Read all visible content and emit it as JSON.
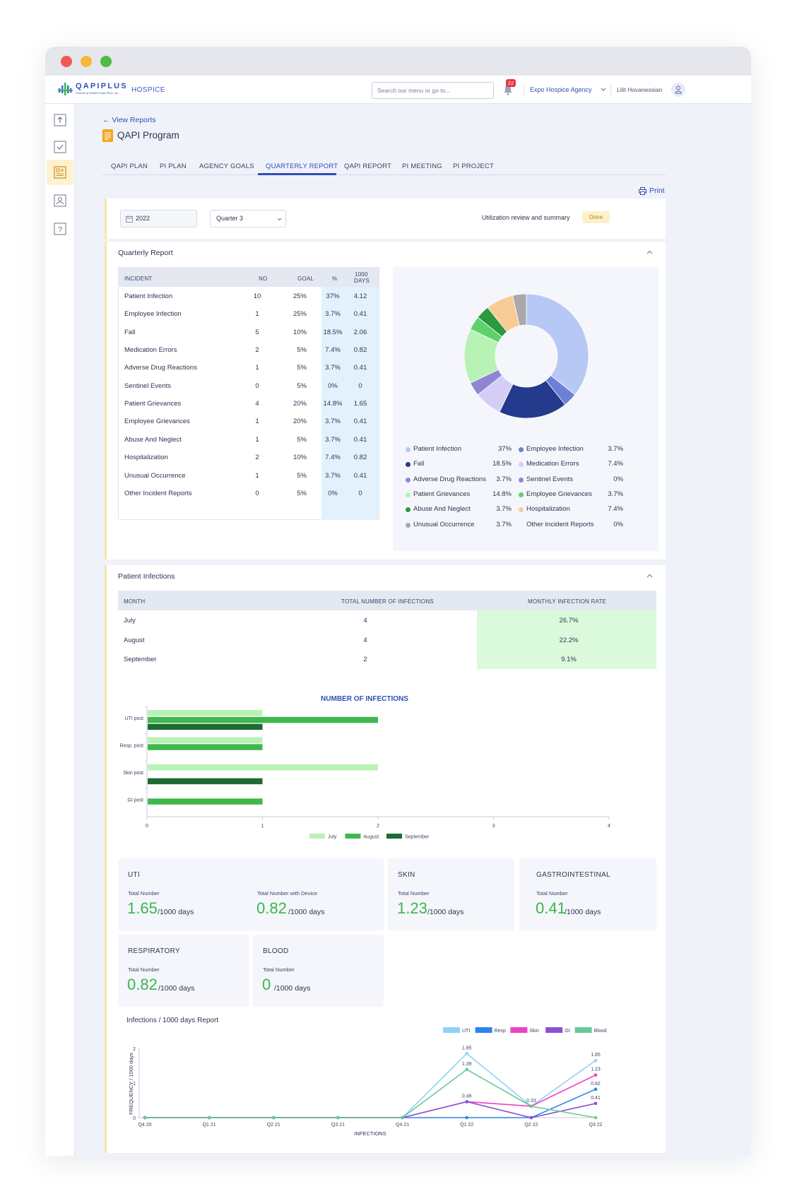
{
  "brand": {
    "logo": "QAPIPLUS",
    "logo_sub": "Product of Health Forum Plus, Inc.",
    "product": "HOSPICE"
  },
  "topbar": {
    "search_placeholder": "Search our menu or go to...",
    "notification_count": "22",
    "agency": "Expo Hospice Agency",
    "user": "Lilit Hovanessian"
  },
  "sidebar": {
    "items": [
      "upload-icon",
      "checklist-icon",
      "report-icon",
      "contact-icon",
      "help-icon"
    ]
  },
  "page": {
    "back_link": "← View Reports",
    "title": "QAPI Program",
    "print": "Print"
  },
  "tabs": [
    "QAPI PLAN",
    "PI PLAN",
    "AGENCY GOALS",
    "QUARTERLY REPORT",
    "QAPI REPORT",
    "PI MEETING",
    "PI PROJECT"
  ],
  "active_tab": "QUARTERLY REPORT",
  "filters": {
    "year": "2022",
    "quarter": "Quarter 3",
    "review_label": "Utilization review and summary",
    "review_status": "Done"
  },
  "quarterly": {
    "title": "Quarterly Report",
    "headers": [
      "INCIDENT",
      "NO",
      "GOAL",
      "%",
      "1000",
      "DAYS"
    ],
    "rows": [
      [
        "Patient Infection",
        "10",
        "25%",
        "37%",
        "4.12"
      ],
      [
        "Employee Infection",
        "1",
        "25%",
        "3.7%",
        "0.41"
      ],
      [
        "Fall",
        "5",
        "10%",
        "18.5%",
        "2.06"
      ],
      [
        "Medication Errors",
        "2",
        "5%",
        "7.4%",
        "0.82"
      ],
      [
        "Adverse Drug Reactions",
        "1",
        "5%",
        "3.7%",
        "0.41"
      ],
      [
        "Sentinel Events",
        "0",
        "5%",
        "0%",
        "0"
      ],
      [
        "Patient Grievances",
        "4",
        "20%",
        "14.8%",
        "1.65"
      ],
      [
        "Employee Grievances",
        "1",
        "20%",
        "3.7%",
        "0.41"
      ],
      [
        "Abuse And Neglect",
        "1",
        "5%",
        "3.7%",
        "0.41"
      ],
      [
        "Hospitalization",
        "2",
        "10%",
        "7.4%",
        "0.82"
      ],
      [
        "Unusual Occurrence",
        "1",
        "5%",
        "3.7%",
        "0.41"
      ],
      [
        "Other Incident Reports",
        "0",
        "5%",
        "0%",
        "0"
      ]
    ],
    "legend": [
      {
        "label": "Patient Infection",
        "value": "37%",
        "color": "#b7c8f4"
      },
      {
        "label": "Employee Infection",
        "value": "3.7%",
        "color": "#6b80d6"
      },
      {
        "label": "Fall",
        "value": "18.5%",
        "color": "#243a8c"
      },
      {
        "label": "Medication Errors",
        "value": "7.4%",
        "color": "#d4cef6"
      },
      {
        "label": "Adverse Drug Reactions",
        "value": "3.7%",
        "color": "#8f86d3"
      },
      {
        "label": "Sentinel Events",
        "value": "0%",
        "color": "#8e86d6"
      },
      {
        "label": "Patient Grievances",
        "value": "14.8%",
        "color": "#b8f2b4"
      },
      {
        "label": "Employee Grievances",
        "value": "3.7%",
        "color": "#5fd16a"
      },
      {
        "label": "Abuse And Neglect",
        "value": "3.7%",
        "color": "#2a9a3c"
      },
      {
        "label": "Hospitalization",
        "value": "7.4%",
        "color": "#f8cb96"
      },
      {
        "label": "Unusual Occurrence",
        "value": "3.7%",
        "color": "#a9a9ad"
      },
      {
        "label": "Other Incident Reports",
        "value": "0%",
        "color": ""
      }
    ]
  },
  "infections": {
    "title": "Patient Infections",
    "headers": [
      "MONTH",
      "TOTAL NUMBER OF INFECTIONS",
      "MONTHLY INFECTION RATE"
    ],
    "rows": [
      [
        "July",
        "4",
        "26.7%"
      ],
      [
        "August",
        "4",
        "22.2%"
      ],
      [
        "September",
        "2",
        "9.1%"
      ]
    ]
  },
  "stats": {
    "uti": {
      "title": "UTI",
      "l1": "Total Number",
      "v1": "1.65",
      "l2": "Total Number with Device",
      "v2": "0.82"
    },
    "skin": {
      "title": "SKIN",
      "l1": "Total Number",
      "v1": "1.23"
    },
    "gi": {
      "title": "GASTROINTESTINAL",
      "l1": "Total Number",
      "v1": "0.41"
    },
    "resp": {
      "title": "RESPIRATORY",
      "l1": "Total Number",
      "v1": "0.82"
    },
    "blood": {
      "title": "BLOOD",
      "l1": "Total Number",
      "v1": "0"
    },
    "unit": "/1000 days"
  },
  "chart_data": [
    {
      "type": "pie",
      "categories": [
        "Patient Infection",
        "Employee Infection",
        "Fall",
        "Medication Errors",
        "Adverse Drug Reactions",
        "Sentinel Events",
        "Patient Grievances",
        "Employee Grievances",
        "Abuse And Neglect",
        "Hospitalization",
        "Unusual Occurrence",
        "Other Incident Reports"
      ],
      "values": [
        37,
        3.7,
        18.5,
        7.4,
        3.7,
        0,
        14.8,
        3.7,
        3.7,
        7.4,
        3.7,
        0
      ],
      "colors": [
        "#b7c8f4",
        "#6b80d6",
        "#243a8c",
        "#d4cef6",
        "#8f86d3",
        "#8e86d6",
        "#b8f2b4",
        "#5fd16a",
        "#2a9a3c",
        "#f8cb96",
        "#a9a9ad",
        "#d9d9d9"
      ],
      "donut": true
    },
    {
      "type": "bar",
      "orientation": "horizontal",
      "title": "NUMBER OF INFECTIONS",
      "categories": [
        "UTI post",
        "Resp. post",
        "Skin post",
        "GI post"
      ],
      "series": [
        {
          "name": "July",
          "color": "#b8f2b4",
          "values": [
            1,
            1,
            2,
            0
          ]
        },
        {
          "name": "August",
          "color": "#3fb84c",
          "values": [
            2,
            1,
            0,
            1
          ]
        },
        {
          "name": "September",
          "color": "#1e6b34",
          "values": [
            1,
            0,
            1,
            0
          ]
        }
      ],
      "xlim": [
        0,
        4
      ],
      "xticks": [
        "0",
        "1",
        "2",
        "3",
        "4"
      ],
      "legend": "bottom"
    },
    {
      "type": "line",
      "title": "Infections / 1000 days Report",
      "xlabel": "INFECTIONS",
      "ylabel": "FREQUENCY / 1000 days",
      "categories": [
        "Q4 20",
        "Q1 21",
        "Q2 21",
        "Q3 21",
        "Q4 21",
        "Q1 22",
        "Q2 22",
        "Q3 22"
      ],
      "ylim": [
        0,
        2
      ],
      "yticks": [
        "0",
        "1",
        "2"
      ],
      "series": [
        {
          "name": "UTI",
          "color": "#8fd3f4",
          "values": [
            0,
            0,
            0,
            0,
            0,
            1.85,
            0.33,
            1.65
          ]
        },
        {
          "name": "Resp",
          "color": "#2b86e6",
          "values": [
            0,
            0,
            0,
            0,
            0,
            0,
            0,
            0.82
          ]
        },
        {
          "name": "Skin",
          "color": "#f03fc4",
          "values": [
            0,
            0,
            0,
            0,
            0,
            0.46,
            0.33,
            1.23
          ]
        },
        {
          "name": "GI",
          "color": "#8a4fd8",
          "values": [
            0,
            0,
            0,
            0,
            0,
            0.46,
            0,
            0.41
          ]
        },
        {
          "name": "Blood",
          "color": "#6ac79a",
          "values": [
            0,
            0,
            0,
            0,
            0,
            1.39,
            0.33,
            0
          ]
        }
      ],
      "labels": [
        {
          "text": "1.85"
        },
        {
          "text": "1.39"
        },
        {
          "text": "0.46"
        },
        {
          "text": "0.33"
        },
        {
          "text": "1.65"
        },
        {
          "text": "1.23"
        },
        {
          "text": "0.82"
        },
        {
          "text": "0.41"
        }
      ],
      "legend": "top-right"
    }
  ]
}
